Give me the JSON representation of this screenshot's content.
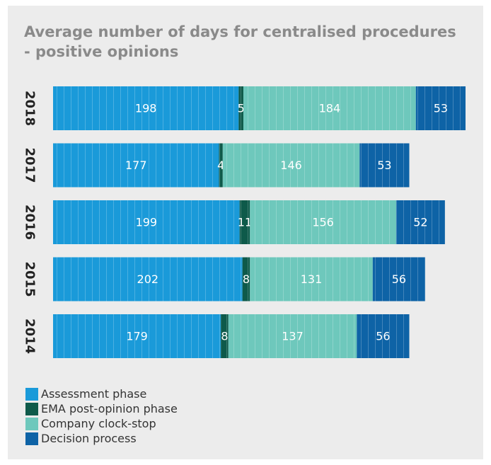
{
  "chart_data": {
    "type": "bar",
    "orientation": "horizontal",
    "stacked": true,
    "title": "Average number of days for centralised procedures - positive opinions",
    "categories": [
      "2018",
      "2017",
      "2016",
      "2015",
      "2014"
    ],
    "series": [
      {
        "name": "Assessment phase",
        "values": [
          198,
          177,
          199,
          202,
          179
        ],
        "color": "#1a9ad9"
      },
      {
        "name": "EMA post-opinion phase",
        "values": [
          5,
          4,
          11,
          8,
          8
        ],
        "color": "#0e5a4a"
      },
      {
        "name": "Company clock-stop",
        "values": [
          184,
          146,
          156,
          131,
          137
        ],
        "color": "#6ec8bc"
      },
      {
        "name": "Decision process",
        "values": [
          53,
          53,
          52,
          56,
          56
        ],
        "color": "#0e63a6"
      }
    ],
    "grid": false,
    "legend_position": "bottom-left",
    "data_labels": true
  }
}
